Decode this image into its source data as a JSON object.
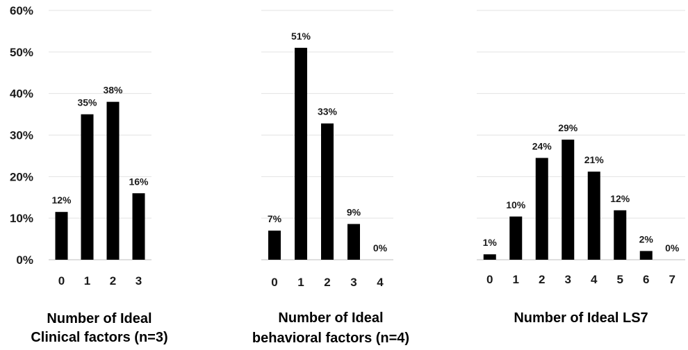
{
  "chart_data": [
    {
      "type": "bar",
      "categories": [
        "0",
        "1",
        "2",
        "3"
      ],
      "values": [
        11.5,
        35,
        38,
        16
      ],
      "data_labels": [
        "12%",
        "35%",
        "38%",
        "16%"
      ],
      "xlabel_lines": [
        "Number of Ideal",
        "Clinical factors (n=3)"
      ],
      "ylim": [
        0,
        60
      ],
      "yticks": [
        "0%",
        "10%",
        "20%",
        "30%",
        "40%",
        "50%",
        "60%"
      ],
      "grid": true,
      "bar_color": "#000000"
    },
    {
      "type": "bar",
      "categories": [
        "0",
        "1",
        "2",
        "3",
        "4"
      ],
      "values": [
        7,
        51,
        32.8,
        8.6,
        0
      ],
      "data_labels": [
        "7%",
        "51%",
        "33%",
        "9%",
        "0%"
      ],
      "xlabel_lines": [
        "Number of Ideal",
        "behavioral factors (n=4)"
      ],
      "ylim": [
        0,
        60
      ],
      "grid": true,
      "bar_color": "#000000"
    },
    {
      "type": "bar",
      "categories": [
        "0",
        "1",
        "2",
        "3",
        "4",
        "5",
        "6",
        "7"
      ],
      "values": [
        1.3,
        10.4,
        24.5,
        28.9,
        21.2,
        11.9,
        2.1,
        0
      ],
      "data_labels": [
        "1%",
        "10%",
        "24%",
        "29%",
        "21%",
        "12%",
        "2%",
        "0%"
      ],
      "xlabel_lines": [
        "Number of Ideal LS7"
      ],
      "ylim": [
        0,
        60
      ],
      "grid": true,
      "bar_color": "#000000"
    }
  ]
}
